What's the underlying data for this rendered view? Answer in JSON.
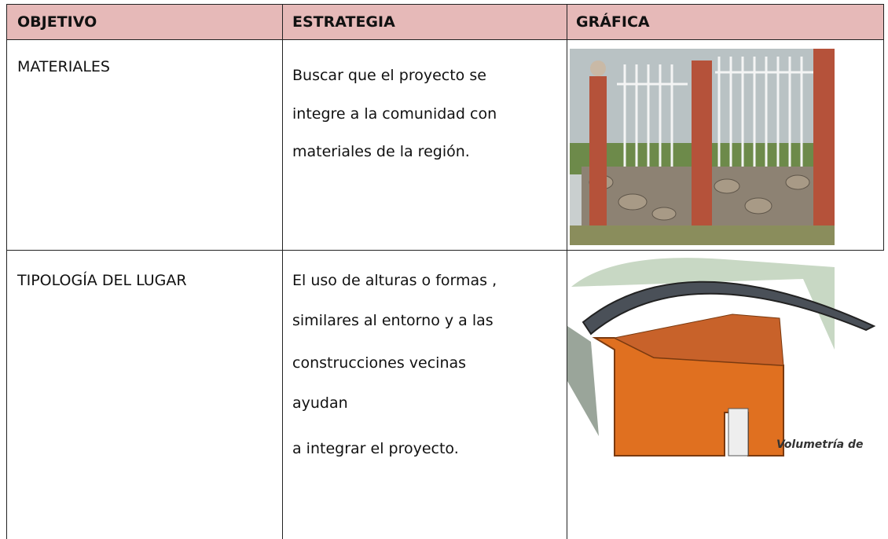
{
  "table": {
    "header": [
      "OBJETIVO",
      "ESTRATEGIA",
      "GRÁFICA"
    ],
    "rows": [
      {
        "objective": "MATERIALES",
        "strategy": [
          "Buscar que el proyecto se",
          "integre a la comunidad con",
          "materiales de la región."
        ]
      },
      {
        "objective": "TIPOLOGÍA DEL LUGAR",
        "strategy": [
          "El uso de alturas o formas ,",
          "similares al entorno y a las",
          "construcciones vecinas",
          "ayudan",
          "a integrar el proyecto."
        ],
        "graphic_text": "Volumetría de"
      }
    ]
  }
}
